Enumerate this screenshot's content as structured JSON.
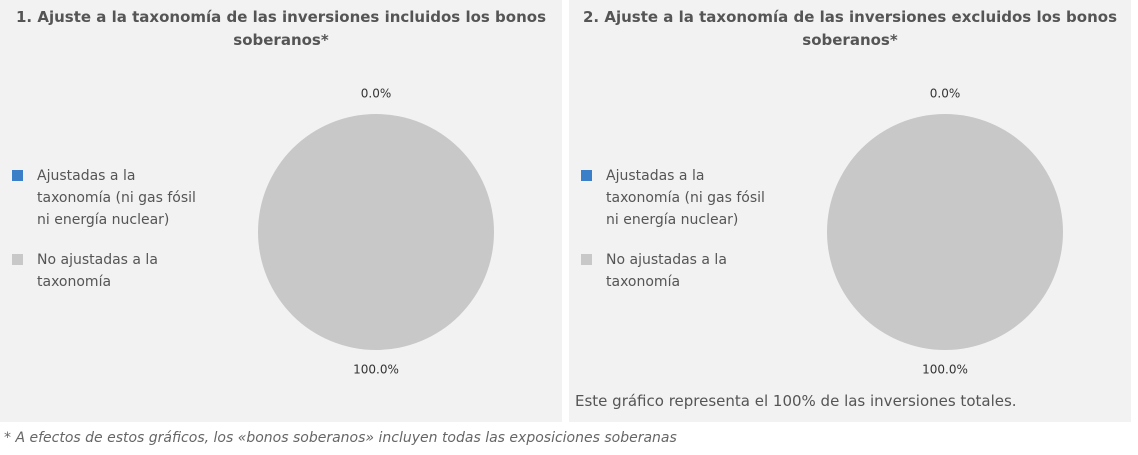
{
  "chart_data": [
    {
      "type": "pie",
      "title": "1. Ajuste a la taxonomía de las inversiones incluidos los bonos soberanos*",
      "categories": [
        "Ajustadas a la taxonomía (ni gas fósil ni energía nuclear)",
        "No ajustadas a la taxonomía"
      ],
      "values": [
        0.0,
        100.0
      ],
      "value_labels": [
        "0.0%",
        "100.0%"
      ],
      "colors": [
        "#3a7fc8",
        "#c8c8c8"
      ],
      "legend": "left"
    },
    {
      "type": "pie",
      "title": "2. Ajuste a la taxonomía de las inversiones excluidos los bonos soberanos*",
      "categories": [
        "Ajustadas a la taxonomía (ni gas fósil ni energía nuclear)",
        "No ajustadas a la taxonomía"
      ],
      "values": [
        0.0,
        100.0
      ],
      "value_labels": [
        "0.0%",
        "100.0%"
      ],
      "colors": [
        "#3a7fc8",
        "#c8c8c8"
      ],
      "legend": "left",
      "note": "Este gráfico representa el 100% de las inversiones totales."
    }
  ],
  "footnote": "* A efectos de estos gráficos, los «bonos soberanos» incluyen todas las exposiciones soberanas"
}
